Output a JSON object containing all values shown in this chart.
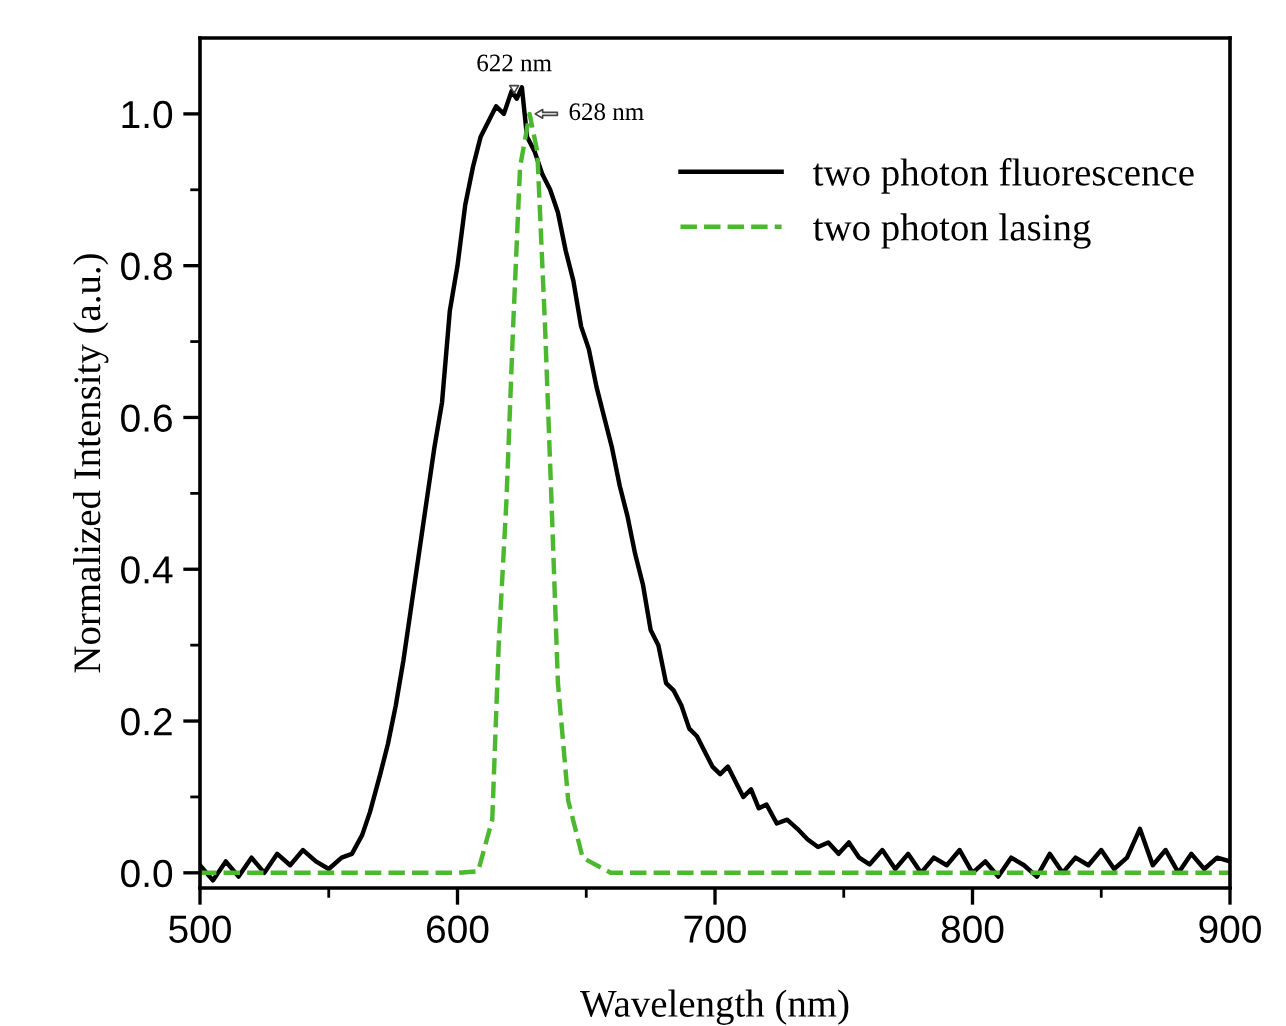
{
  "chart_data": {
    "type": "line",
    "xlabel": "Wavelength (nm)",
    "ylabel": "Normalized Intensity (a.u.)",
    "xlim": [
      500,
      900
    ],
    "xticks": [
      500,
      600,
      700,
      800,
      900
    ],
    "ylim": [
      -0.02,
      1.1
    ],
    "yticks": [
      {
        "value": 0,
        "label": "0.0"
      },
      {
        "value": 0.2,
        "label": "0.2"
      },
      {
        "value": 0.4,
        "label": "0.4"
      },
      {
        "value": 0.6,
        "label": "0.6"
      },
      {
        "value": 0.8,
        "label": "0.8"
      },
      {
        "value": 1.0,
        "label": "1.0"
      }
    ],
    "grid": false,
    "legend": "top right",
    "marker": "none",
    "annotations": [
      {
        "text": "622 nm",
        "x": 622,
        "y": 1.02
      },
      {
        "text": "628 nm",
        "x": 628,
        "y": 1.0
      }
    ],
    "series": [
      {
        "name": "two photon fluorescence",
        "color": "#000000",
        "line_style": "solid",
        "x": [
          500,
          505,
          510,
          515,
          520,
          525,
          530,
          535,
          540,
          545,
          550,
          555,
          559,
          563,
          566,
          570,
          573,
          576,
          579,
          582,
          585,
          588,
          591,
          594,
          597,
          600,
          603,
          606,
          609,
          612,
          615,
          618,
          621,
          623,
          625,
          627,
          630,
          633,
          636,
          639,
          642,
          645,
          648,
          651,
          654,
          657,
          660,
          663,
          666,
          669,
          672,
          675,
          678,
          681,
          684,
          687,
          690,
          693,
          696,
          699,
          702,
          705,
          708,
          711,
          714,
          717,
          720,
          724,
          728,
          732,
          736,
          740,
          744,
          748,
          752,
          756,
          760,
          765,
          770,
          775,
          780,
          785,
          790,
          795,
          800,
          805,
          810,
          815,
          820,
          825,
          830,
          835,
          840,
          845,
          850,
          855,
          860,
          865,
          870,
          875,
          880,
          885,
          890,
          895,
          900
        ],
        "values": [
          0.01,
          -0.01,
          0.015,
          -0.005,
          0.02,
          0.0,
          0.025,
          0.01,
          0.03,
          0.015,
          0.005,
          0.02,
          0.025,
          0.05,
          0.08,
          0.13,
          0.17,
          0.22,
          0.28,
          0.35,
          0.42,
          0.49,
          0.56,
          0.62,
          0.74,
          0.8,
          0.88,
          0.93,
          0.97,
          0.99,
          1.01,
          1.0,
          1.03,
          1.02,
          1.035,
          0.97,
          0.95,
          0.92,
          0.9,
          0.87,
          0.82,
          0.78,
          0.72,
          0.69,
          0.64,
          0.6,
          0.56,
          0.51,
          0.47,
          0.42,
          0.38,
          0.32,
          0.3,
          0.25,
          0.24,
          0.22,
          0.19,
          0.18,
          0.16,
          0.14,
          0.13,
          0.14,
          0.12,
          0.1,
          0.11,
          0.085,
          0.09,
          0.065,
          0.07,
          0.058,
          0.044,
          0.034,
          0.04,
          0.025,
          0.04,
          0.02,
          0.011,
          0.03,
          0.005,
          0.025,
          0.0,
          0.02,
          0.01,
          0.03,
          0.0,
          0.015,
          -0.005,
          0.02,
          0.01,
          -0.005,
          0.025,
          0.0,
          0.02,
          0.01,
          0.03,
          0.005,
          0.02,
          0.058,
          0.01,
          0.03,
          0.0,
          0.025,
          0.005,
          0.02,
          0.015
        ]
      },
      {
        "name": "two photon lasing",
        "color": "#4cb830",
        "line_style": "dashed",
        "x": [
          500,
          550,
          600,
          608,
          613.5,
          616,
          619,
          621.6,
          624.3,
          628,
          631,
          634,
          636.5,
          639,
          643,
          648.6,
          659.5,
          700,
          800,
          900
        ],
        "values": [
          0.0,
          0.0,
          0.0,
          0.002,
          0.07,
          0.3,
          0.49,
          0.72,
          0.93,
          1.0,
          0.95,
          0.72,
          0.49,
          0.25,
          0.095,
          0.02,
          0.0,
          0.0,
          0.0,
          0.0
        ]
      }
    ]
  }
}
